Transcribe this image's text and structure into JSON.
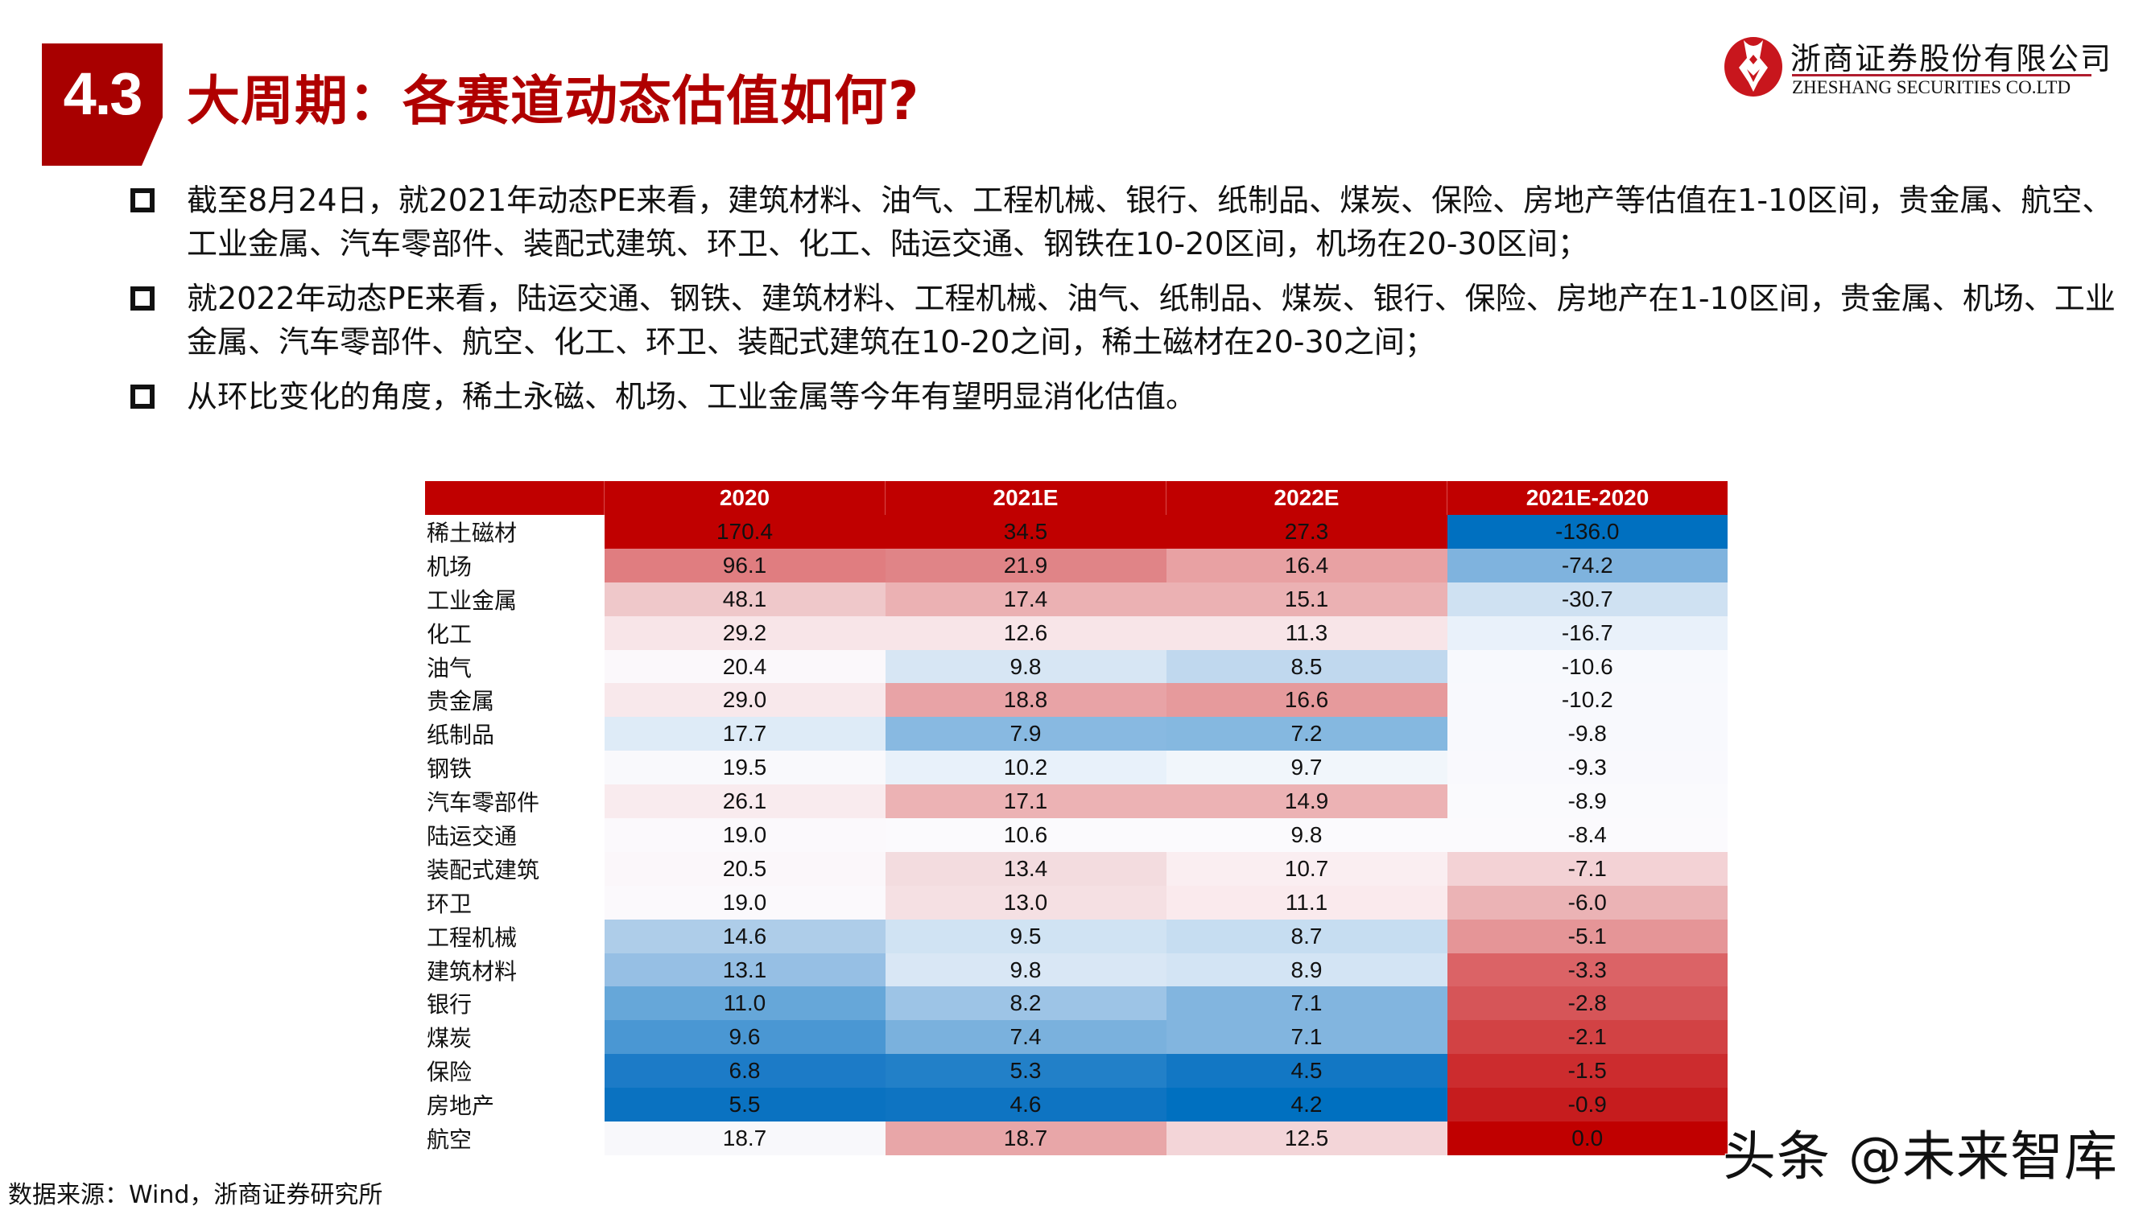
{
  "header": {
    "section_number": "4.3",
    "title": "大周期：各赛道动态估值如何?",
    "accent_color": "#b00000"
  },
  "logo": {
    "name_cn": "浙商证券股份有限公司",
    "name_en": "ZHESHANG SECURITIES CO.LTD",
    "icon": "zheshang-logo-icon"
  },
  "bullets": [
    {
      "text": "截至8月24日，就2021年动态PE来看，建筑材料、油气、工程机械、银行、纸制品、煤炭、保险、房地产等估值在1-10区间，贵金属、航空、工业金属、汽车零部件、装配式建筑、环卫、化工、陆运交通、钢铁在10-20区间，机场在20-30区间；"
    },
    {
      "text": "就2022年动态PE来看，陆运交通、钢铁、建筑材料、工程机械、油气、纸制品、煤炭、银行、保险、房地产在1-10区间，贵金属、机场、工业金属、汽车零部件、航空、化工、环卫、装配式建筑在10-20之间，稀土磁材在20-30之间；"
    },
    {
      "text": "从环比变化的角度，稀土永磁、机场、工业金属等今年有望明显消化估值。"
    }
  ],
  "table": {
    "columns": [
      "",
      "2020",
      "2021E",
      "2022E",
      "2021E-2020"
    ],
    "rows": [
      {
        "name": "稀土磁材",
        "values": [
          "170.4",
          "34.5",
          "27.3",
          "-136.0"
        ],
        "colors": [
          "#c00000",
          "#c00000",
          "#c00000",
          "#0070c0"
        ]
      },
      {
        "name": "机场",
        "values": [
          "96.1",
          "21.9",
          "16.4",
          "-74.2"
        ],
        "colors": [
          "#e07d80",
          "#e08487",
          "#e8a1a3",
          "#7fb3de"
        ]
      },
      {
        "name": "工业金属",
        "values": [
          "48.1",
          "17.4",
          "15.1",
          "-30.7"
        ],
        "colors": [
          "#efc8ca",
          "#ebb1b3",
          "#ebb1b3",
          "#cfe1f2"
        ]
      },
      {
        "name": "化工",
        "values": [
          "29.2",
          "12.6",
          "11.3",
          "-16.7"
        ],
        "colors": [
          "#f8e5e8",
          "#f8e5e8",
          "#f8e5e8",
          "#e9f1fa"
        ]
      },
      {
        "name": "油气",
        "values": [
          "20.4",
          "9.8",
          "8.5",
          "-10.6"
        ],
        "colors": [
          "#fbf8fb",
          "#d7e6f4",
          "#c0d8ee",
          "#f7f9fd"
        ]
      },
      {
        "name": "贵金属",
        "values": [
          "29.0",
          "18.8",
          "16.6",
          "-10.2"
        ],
        "colors": [
          "#f8e8eb",
          "#e8a3a6",
          "#e69a9c",
          "#f8f9fd"
        ]
      },
      {
        "name": "纸制品",
        "values": [
          "17.7",
          "7.9",
          "7.2",
          "-9.8"
        ],
        "colors": [
          "#deebf7",
          "#88b9e1",
          "#85b8e0",
          "#f8f9fd"
        ]
      },
      {
        "name": "钢铁",
        "values": [
          "19.5",
          "10.2",
          "9.7",
          "-9.3"
        ],
        "colors": [
          "#f9f9fc",
          "#e8f1fa",
          "#f1f6fb",
          "#f9f9fd"
        ]
      },
      {
        "name": "汽车零部件",
        "values": [
          "26.1",
          "17.1",
          "14.9",
          "-8.9"
        ],
        "colors": [
          "#f9ebee",
          "#ecb2b4",
          "#ecb2b4",
          "#fafafd"
        ]
      },
      {
        "name": "陆运交通",
        "values": [
          "19.0",
          "10.6",
          "9.8",
          "-8.4"
        ],
        "colors": [
          "#fbf9fc",
          "#fbfafd",
          "#fbfafd",
          "#fbfafd"
        ]
      },
      {
        "name": "装配式建筑",
        "values": [
          "20.5",
          "13.4",
          "10.7",
          "-7.1"
        ],
        "colors": [
          "#fbf7fa",
          "#f3dcdf",
          "#faeef1",
          "#f3d2d5"
        ]
      },
      {
        "name": "环卫",
        "values": [
          "19.0",
          "13.0",
          "11.1",
          "-6.0"
        ],
        "colors": [
          "#fbf9fc",
          "#f5e0e3",
          "#faeaed",
          "#ebb3b5"
        ]
      },
      {
        "name": "工程机械",
        "values": [
          "14.6",
          "9.5",
          "8.7",
          "-5.1"
        ],
        "colors": [
          "#aecde9",
          "#d0e3f3",
          "#c6ddf1",
          "#e59597"
        ]
      },
      {
        "name": "建筑材料",
        "values": [
          "13.1",
          "9.8",
          "8.9",
          "-3.3"
        ],
        "colors": [
          "#96bfe4",
          "#d9e7f5",
          "#d3e4f4",
          "#db6366"
        ]
      },
      {
        "name": "银行",
        "values": [
          "11.0",
          "8.2",
          "7.1",
          "-2.8"
        ],
        "colors": [
          "#66a7d9",
          "#9dc4e6",
          "#82b5df",
          "#d65558"
        ]
      },
      {
        "name": "煤炭",
        "values": [
          "9.6",
          "7.4",
          "7.1",
          "-2.1"
        ],
        "colors": [
          "#4a97d3",
          "#7ab1dd",
          "#82b5df",
          "#d24244"
        ]
      },
      {
        "name": "保险",
        "values": [
          "6.8",
          "5.3",
          "4.5",
          "-1.5"
        ],
        "colors": [
          "#1c7bc7",
          "#2280c8",
          "#1277c4",
          "#cc2c2e"
        ]
      },
      {
        "name": "房地产",
        "values": [
          "5.5",
          "4.6",
          "4.2",
          "-0.9"
        ],
        "colors": [
          "#0a72c1",
          "#0e74c2",
          "#0070c0",
          "#c61c1e"
        ]
      },
      {
        "name": "航空",
        "values": [
          "18.7",
          "18.7",
          "12.5",
          "0.0"
        ],
        "colors": [
          "#f8f8fb",
          "#e8a6a8",
          "#f3d5d8",
          "#c00000"
        ]
      }
    ]
  },
  "footer": {
    "source": "数据来源：Wind，浙商证券研究所",
    "watermark": "头条 @未来智库"
  }
}
